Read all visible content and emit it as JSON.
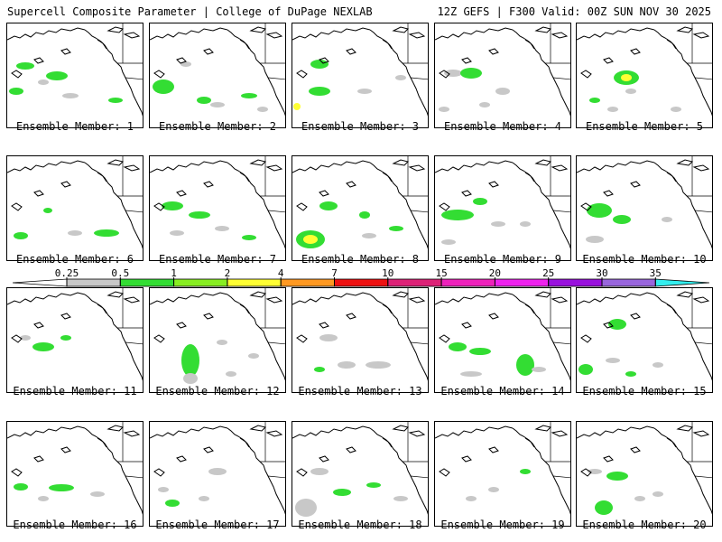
{
  "header": {
    "left": "Supercell Composite Parameter | College of DuPage NEXLAB",
    "right": "12Z GEFS | F300 Valid: 00Z SUN NOV 30 2025"
  },
  "panels": [
    {
      "label": "Ensemble Member: 1"
    },
    {
      "label": "Ensemble Member: 2"
    },
    {
      "label": "Ensemble Member: 3"
    },
    {
      "label": "Ensemble Member: 4"
    },
    {
      "label": "Ensemble Member: 5"
    },
    {
      "label": "Ensemble Member: 6"
    },
    {
      "label": "Ensemble Member: 7"
    },
    {
      "label": "Ensemble Member: 8"
    },
    {
      "label": "Ensemble Member: 9"
    },
    {
      "label": "Ensemble Member: 10"
    },
    {
      "label": "Ensemble Member: 11"
    },
    {
      "label": "Ensemble Member: 12"
    },
    {
      "label": "Ensemble Member: 13"
    },
    {
      "label": "Ensemble Member: 14"
    },
    {
      "label": "Ensemble Member: 15"
    },
    {
      "label": "Ensemble Member: 16"
    },
    {
      "label": "Ensemble Member: 17"
    },
    {
      "label": "Ensemble Member: 18"
    },
    {
      "label": "Ensemble Member: 19"
    },
    {
      "label": "Ensemble Member: 20"
    }
  ],
  "colorbar": {
    "ticks": [
      "0.25",
      "0.5",
      "1",
      "2",
      "4",
      "7",
      "10",
      "15",
      "20",
      "25",
      "30",
      "35"
    ],
    "colors": [
      "#c8c8c8",
      "#33dd33",
      "#88ee22",
      "#ffff33",
      "#ff9922",
      "#ee1111",
      "#dd2277",
      "#ee22bb",
      "#ee22ee",
      "#9911dd",
      "#9966dd",
      "#33eeee"
    ]
  },
  "legend_colors": {
    "gray": "#c8c8c8",
    "green": "#33dd33",
    "lime": "#88ee22",
    "yellow": "#ffff33"
  }
}
